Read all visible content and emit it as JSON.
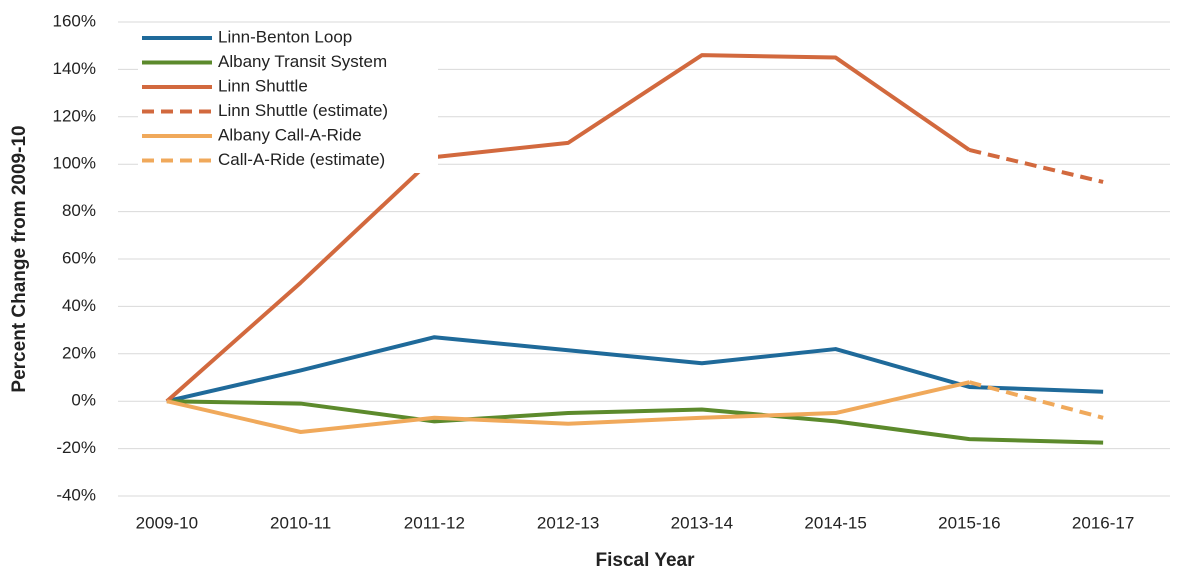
{
  "chart_data": {
    "type": "line",
    "x_label": "Fiscal Year",
    "y_label": "Percent Change from 2009-10",
    "categories": [
      "2009-10",
      "2010-11",
      "2011-12",
      "2012-13",
      "2013-14",
      "2014-15",
      "2015-16",
      "2016-17"
    ],
    "series": [
      {
        "name": "Linn-Benton Loop",
        "color": "#1f6a9a",
        "dash": false,
        "values": [
          0,
          13,
          27,
          21.5,
          16,
          22,
          6,
          4
        ]
      },
      {
        "name": "Albany Transit System",
        "color": "#5c8a2c",
        "dash": false,
        "values": [
          0,
          -1,
          -8.5,
          -5,
          -3.5,
          -8.5,
          -16,
          -17.5
        ]
      },
      {
        "name": "Linn Shuttle",
        "color": "#d2693e",
        "dash": false,
        "values": [
          0,
          50,
          103,
          109,
          146,
          145,
          106,
          null
        ]
      },
      {
        "name": "Linn Shuttle (estimate)",
        "color": "#d2693e",
        "dash": true,
        "values": [
          null,
          null,
          null,
          null,
          null,
          null,
          106,
          92.5
        ]
      },
      {
        "name": "Albany Call-A-Ride",
        "color": "#f0a95b",
        "dash": false,
        "values": [
          0,
          -13,
          -7,
          -9.5,
          -7,
          -5,
          8,
          null
        ]
      },
      {
        "name": "Call-A-Ride (estimate)",
        "color": "#f0a95b",
        "dash": true,
        "values": [
          null,
          null,
          null,
          null,
          null,
          null,
          8,
          -7
        ]
      }
    ],
    "ylim": [
      -40,
      160
    ],
    "yticks": [
      {
        "value": -40,
        "label": "-40%"
      },
      {
        "value": -20,
        "label": "-20%"
      },
      {
        "value": 0,
        "label": "0%"
      },
      {
        "value": 20,
        "label": "20%"
      },
      {
        "value": 40,
        "label": "40%"
      },
      {
        "value": 60,
        "label": "60%"
      },
      {
        "value": 80,
        "label": "80%"
      },
      {
        "value": 100,
        "label": "100%"
      },
      {
        "value": 120,
        "label": "120%"
      },
      {
        "value": 140,
        "label": "140%"
      },
      {
        "value": 160,
        "label": "160%"
      }
    ],
    "grid": true,
    "legend": "top-left"
  }
}
